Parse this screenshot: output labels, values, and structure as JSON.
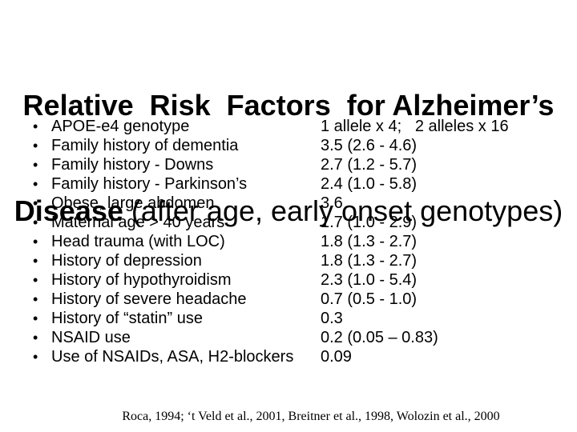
{
  "slide": {
    "title": {
      "line1": "Relative  Risk  Factors  for Alzheimer’s",
      "line2_bold": "Disease",
      "line2_rest": " (after age, early onset genotypes)"
    },
    "bullet_char": "•",
    "rows": [
      {
        "factor": "APOE-e4 genotype",
        "value": "1 allele x 4;   2 alleles x 16"
      },
      {
        "factor": "Family history of dementia",
        "value": "3.5 (2.6 - 4.6)"
      },
      {
        "factor": "Family history - Downs",
        "value": "2.7 (1.2 - 5.7)"
      },
      {
        "factor": "Family history - Parkinson’s",
        "value": "2.4 (1.0 - 5.8)"
      },
      {
        "factor": "Obese, large abdomen",
        "value": "3.6"
      },
      {
        "factor": "Maternal age > 40 years",
        "value": "1.7 (1.0 - 2.9)"
      },
      {
        "factor": "Head trauma (with LOC)",
        "value": "1.8 (1.3 - 2.7)"
      },
      {
        "factor": "History of depression",
        "value": "1.8 (1.3 - 2.7)"
      },
      {
        "factor": "History of hypothyroidism",
        "value": "2.3 (1.0 - 5.4)"
      },
      {
        "factor": "History of severe headache",
        "value": "0.7 (0.5 - 1.0)"
      },
      {
        "factor": "History of “statin” use",
        "value": "0.3"
      },
      {
        "factor": "NSAID use",
        "value": "0.2 (0.05 – 0.83)"
      },
      {
        "factor": "Use of NSAIDs, ASA, H2-blockers",
        "value": "0.09"
      }
    ],
    "citation": "Roca, 1994; ‘t Veld et al., 2001, Breitner et al., 1998, Wolozin et al., 2000",
    "colors": {
      "text": "#000000",
      "background": "#ffffff"
    }
  }
}
